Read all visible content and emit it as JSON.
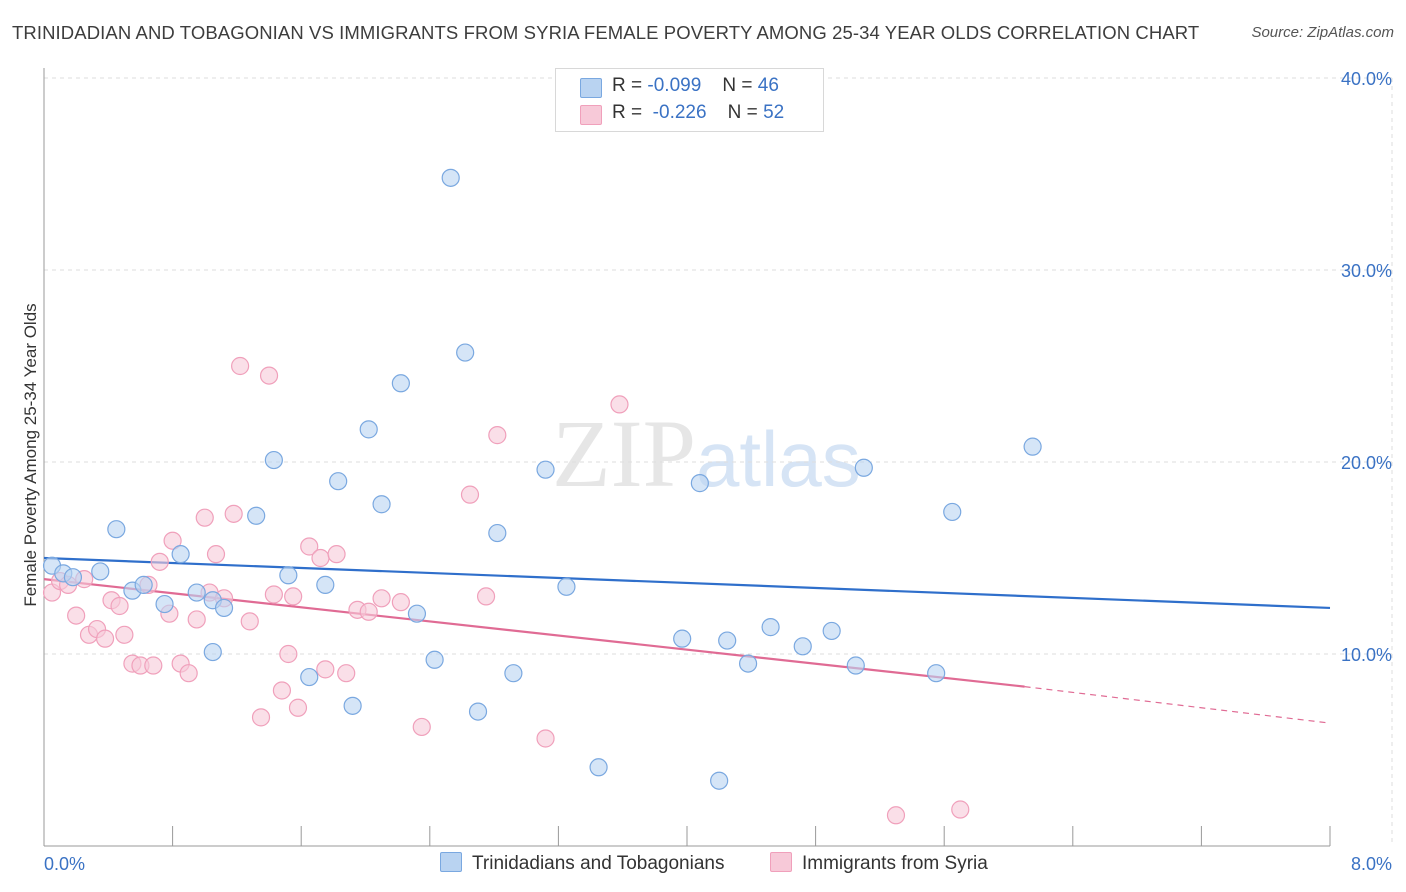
{
  "chart_data": {
    "type": "scatter",
    "title": "TRINIDADIAN AND TOBAGONIAN VS IMMIGRANTS FROM SYRIA FEMALE POVERTY AMONG 25-34 YEAR OLDS CORRELATION CHART",
    "source": "Source: ZipAtlas.com",
    "ylabel": "Female Poverty Among 25-34 Year Olds",
    "xlabel": "",
    "xlim": [
      0,
      8
    ],
    "ylim": [
      0,
      40
    ],
    "x_tick_labels": [
      "0.0%",
      "8.0%"
    ],
    "y_ticks": [
      10,
      20,
      30,
      40
    ],
    "y_tick_labels": [
      "10.0%",
      "20.0%",
      "30.0%",
      "40.0%"
    ],
    "grid": true,
    "watermark": {
      "zip": "ZIP",
      "atlas": "atlas"
    },
    "legend": {
      "placement": "top-center",
      "rows": [
        {
          "r_label": "R =",
          "r_value": "-0.099",
          "n_label": "N =",
          "n_value": "46"
        },
        {
          "r_label": "R =",
          "r_value": "-0.226",
          "n_label": "N =",
          "n_value": "52"
        }
      ]
    },
    "series": [
      {
        "name": "Trinidadians and Tobagonians",
        "color": "#7aa8e0",
        "fill": "#b9d3f1",
        "line_color": "#2f6fcb",
        "trend": {
          "x0": 0.0,
          "y0": 15.0,
          "x1": 8.0,
          "y1": 12.4
        },
        "points": [
          [
            0.05,
            14.6
          ],
          [
            0.12,
            14.2
          ],
          [
            0.18,
            14.0
          ],
          [
            0.35,
            14.3
          ],
          [
            0.45,
            16.5
          ],
          [
            0.55,
            13.3
          ],
          [
            0.62,
            13.6
          ],
          [
            0.75,
            12.6
          ],
          [
            0.85,
            15.2
          ],
          [
            0.95,
            13.2
          ],
          [
            1.05,
            12.8
          ],
          [
            1.05,
            10.1
          ],
          [
            1.12,
            12.4
          ],
          [
            1.32,
            17.2
          ],
          [
            1.43,
            20.1
          ],
          [
            1.52,
            14.1
          ],
          [
            1.65,
            8.8
          ],
          [
            1.75,
            13.6
          ],
          [
            1.83,
            19.0
          ],
          [
            1.92,
            7.3
          ],
          [
            2.02,
            21.7
          ],
          [
            2.1,
            17.8
          ],
          [
            2.22,
            24.1
          ],
          [
            2.32,
            12.1
          ],
          [
            2.43,
            9.7
          ],
          [
            2.53,
            34.8
          ],
          [
            2.62,
            25.7
          ],
          [
            2.7,
            7.0
          ],
          [
            2.82,
            16.3
          ],
          [
            2.92,
            9.0
          ],
          [
            3.12,
            19.6
          ],
          [
            3.25,
            13.5
          ],
          [
            3.45,
            4.1
          ],
          [
            3.97,
            10.8
          ],
          [
            4.08,
            18.9
          ],
          [
            4.25,
            10.7
          ],
          [
            4.38,
            9.5
          ],
          [
            4.52,
            11.4
          ],
          [
            4.72,
            10.4
          ],
          [
            4.9,
            11.2
          ],
          [
            5.05,
            9.4
          ],
          [
            5.1,
            19.7
          ],
          [
            5.55,
            9.0
          ],
          [
            5.65,
            17.4
          ],
          [
            6.15,
            20.8
          ],
          [
            4.2,
            3.4
          ]
        ]
      },
      {
        "name": "Immigrants from Syria",
        "color": "#f0a0bb",
        "fill": "#f7c9d8",
        "line_color": "#e06b94",
        "trend": {
          "x0": 0.0,
          "y0": 13.9,
          "x1": 6.1,
          "y1": 8.3
        },
        "trend_dashed": {
          "x0": 6.1,
          "y0": 8.3,
          "x1": 8.0,
          "y1": 6.4
        },
        "points": [
          [
            0.05,
            13.2
          ],
          [
            0.1,
            13.8
          ],
          [
            0.15,
            13.6
          ],
          [
            0.2,
            12.0
          ],
          [
            0.25,
            13.9
          ],
          [
            0.28,
            11.0
          ],
          [
            0.33,
            11.3
          ],
          [
            0.38,
            10.8
          ],
          [
            0.42,
            12.8
          ],
          [
            0.47,
            12.5
          ],
          [
            0.5,
            11.0
          ],
          [
            0.55,
            9.5
          ],
          [
            0.6,
            9.4
          ],
          [
            0.65,
            13.6
          ],
          [
            0.68,
            9.4
          ],
          [
            0.72,
            14.8
          ],
          [
            0.78,
            12.1
          ],
          [
            0.8,
            15.9
          ],
          [
            0.85,
            9.5
          ],
          [
            0.9,
            9.0
          ],
          [
            0.95,
            11.8
          ],
          [
            1.0,
            17.1
          ],
          [
            1.03,
            13.2
          ],
          [
            1.07,
            15.2
          ],
          [
            1.12,
            12.9
          ],
          [
            1.18,
            17.3
          ],
          [
            1.22,
            25.0
          ],
          [
            1.28,
            11.7
          ],
          [
            1.35,
            6.7
          ],
          [
            1.4,
            24.5
          ],
          [
            1.43,
            13.1
          ],
          [
            1.48,
            8.1
          ],
          [
            1.52,
            10.0
          ],
          [
            1.58,
            7.2
          ],
          [
            1.65,
            15.6
          ],
          [
            1.72,
            15.0
          ],
          [
            1.75,
            9.2
          ],
          [
            1.82,
            15.2
          ],
          [
            1.88,
            9.0
          ],
          [
            1.95,
            12.3
          ],
          [
            2.02,
            12.2
          ],
          [
            2.1,
            12.9
          ],
          [
            2.22,
            12.7
          ],
          [
            2.35,
            6.2
          ],
          [
            2.65,
            18.3
          ],
          [
            2.75,
            13.0
          ],
          [
            2.82,
            21.4
          ],
          [
            3.12,
            5.6
          ],
          [
            3.58,
            23.0
          ],
          [
            5.3,
            1.6
          ],
          [
            5.7,
            1.9
          ],
          [
            1.55,
            13.0
          ]
        ]
      }
    ]
  }
}
